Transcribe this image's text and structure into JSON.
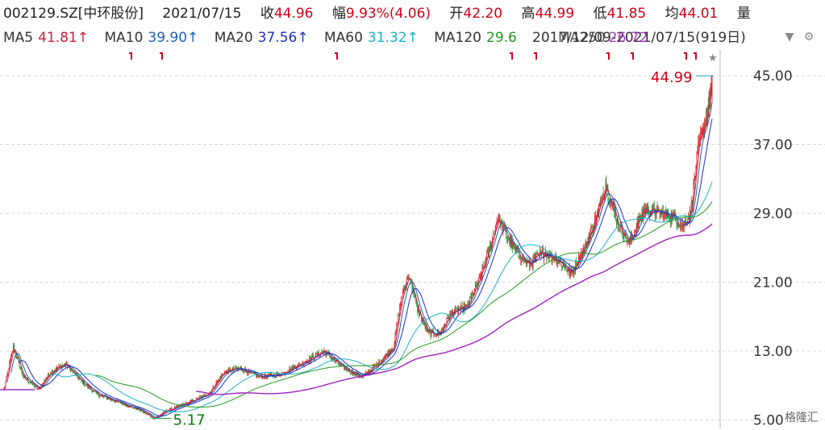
{
  "header": {
    "code": "002129.SZ[中环股份]",
    "date": "2021/07/15",
    "close_label": "收",
    "close": "44.96",
    "change_label": "幅",
    "change": "9.93%(4.06)",
    "open_label": "开",
    "open": "42.20",
    "high_label": "高",
    "high": "44.99",
    "low_label": "低",
    "low": "41.85",
    "avg_label": "均",
    "avg": "44.01",
    "vol_label": "量"
  },
  "ma_row": {
    "items": [
      {
        "name": "MA5",
        "value": "41.81↑",
        "color": "#c81e3a"
      },
      {
        "name": "MA10",
        "value": "39.90↑",
        "color": "#1e5fb8"
      },
      {
        "name": "MA20",
        "value": "37.56↑",
        "color": "#1f2fc6"
      },
      {
        "name": "MA60",
        "value": "31.32↑",
        "color": "#19b3c4"
      },
      {
        "name": "MA120",
        "value": "29.6",
        "color": "#229a22"
      }
    ],
    "range_text": "2017/12/09-2021/07/15(919日)",
    "range_color": "#333333",
    "overlap_text": "MA250",
    "overlap_value": "26.72",
    "overlap_color": "#a020c0"
  },
  "controls": {
    "dropdown_icon": "triangle-down-icon",
    "settings_icon": "gear-icon"
  },
  "annotations": {
    "high_label": "44.99",
    "low_label": "5.17",
    "star_icon": "star-icon"
  },
  "watermark": "格隆汇",
  "colors": {
    "up": "#e0202a",
    "down": "#1e9c3a",
    "ma5": "#c81e3a",
    "ma10": "#1e5fb8",
    "ma20": "#1f2fc6",
    "ma60": "#19b3c4",
    "ma120": "#229a22",
    "ma250": "#a020c0",
    "grid": "#d8d8d8"
  },
  "chart_data": {
    "type": "candlestick",
    "title": "002129.SZ[中环股份]",
    "xlabel": "",
    "ylabel": "",
    "ylim": [
      4.0,
      48.0
    ],
    "yticks": [
      "45.00",
      "37.00",
      "29.00",
      "21.00",
      "13.00",
      "5.00"
    ],
    "date_range": [
      "2017/12/09",
      "2021/07/15"
    ],
    "trading_days": 919,
    "latest": {
      "open": 42.2,
      "high": 44.99,
      "low": 41.85,
      "close": 44.96
    },
    "period_high": 44.99,
    "period_low": 5.17,
    "price_path": [
      [
        0,
        8.5
      ],
      [
        12,
        13.5
      ],
      [
        25,
        10.0
      ],
      [
        45,
        8.5
      ],
      [
        60,
        10.5
      ],
      [
        80,
        11.5
      ],
      [
        100,
        9.5
      ],
      [
        120,
        8.0
      ],
      [
        150,
        7.0
      ],
      [
        175,
        6.2
      ],
      [
        195,
        5.17
      ],
      [
        210,
        6.0
      ],
      [
        240,
        7.0
      ],
      [
        265,
        8.0
      ],
      [
        285,
        10.5
      ],
      [
        305,
        11.0
      ],
      [
        330,
        10.0
      ],
      [
        355,
        10.2
      ],
      [
        385,
        11.5
      ],
      [
        415,
        13.0
      ],
      [
        440,
        11.0
      ],
      [
        465,
        10.0
      ],
      [
        485,
        11.5
      ],
      [
        505,
        13.5
      ],
      [
        515,
        19.0
      ],
      [
        525,
        22.0
      ],
      [
        535,
        18.0
      ],
      [
        550,
        15.0
      ],
      [
        565,
        15.0
      ],
      [
        580,
        17.5
      ],
      [
        600,
        18.0
      ],
      [
        615,
        21.0
      ],
      [
        630,
        25.0
      ],
      [
        640,
        28.5
      ],
      [
        660,
        25.0
      ],
      [
        680,
        23.0
      ],
      [
        700,
        24.5
      ],
      [
        720,
        23.5
      ],
      [
        735,
        22.0
      ],
      [
        755,
        25.5
      ],
      [
        770,
        29.0
      ],
      [
        780,
        32.5
      ],
      [
        795,
        28.0
      ],
      [
        810,
        25.5
      ],
      [
        830,
        29.5
      ],
      [
        850,
        29.0
      ],
      [
        870,
        28.5
      ],
      [
        880,
        27.5
      ],
      [
        890,
        29.0
      ],
      [
        900,
        36.5
      ],
      [
        910,
        40.0
      ],
      [
        919,
        44.96
      ]
    ]
  }
}
